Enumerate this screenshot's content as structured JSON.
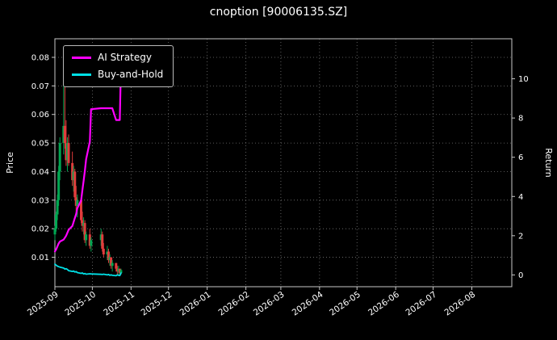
{
  "title": "cnoption [90006135.SZ]",
  "axes": {
    "left_label": "Price",
    "right_label": "Return",
    "left_ticks": [
      0.01,
      0.02,
      0.03,
      0.04,
      0.05,
      0.06,
      0.07,
      0.08
    ],
    "right_ticks": [
      0,
      2,
      4,
      6,
      8,
      10
    ],
    "x_ticks": [
      "2025-09",
      "2025-10",
      "2025-11",
      "2025-12",
      "2026-01",
      "2026-02",
      "2026-03",
      "2026-04",
      "2026-05",
      "2026-06",
      "2026-07",
      "2026-08"
    ]
  },
  "legend": {
    "items": [
      {
        "label": "AI Strategy",
        "color": "#ff00ff"
      },
      {
        "label": "Buy-and-Hold",
        "color": "#00e0e6"
      }
    ]
  },
  "colors": {
    "background": "#000000",
    "text": "#ffffff",
    "grid": "#757575",
    "spine": "#c8c8c8",
    "candle_up": "#00a651",
    "candle_down": "#e03c3c"
  },
  "chart_data": {
    "type": "line",
    "title": "cnoption [90006135.SZ]",
    "xlabel": "",
    "ylabel_left": "Price",
    "ylabel_right": "Return",
    "grid": true,
    "legend_position": "upper left",
    "x_range": [
      "2025-09-01",
      "2026-09-02"
    ],
    "left_ylim": [
      -0.0003,
      0.0865
    ],
    "right_ylim": [
      -0.6,
      12.04
    ],
    "dates": [
      "2025-09-01",
      "2025-09-02",
      "2025-09-03",
      "2025-09-04",
      "2025-09-05",
      "2025-09-08",
      "2025-09-09",
      "2025-09-10",
      "2025-09-11",
      "2025-09-12",
      "2025-09-15",
      "2025-09-16",
      "2025-09-17",
      "2025-09-18",
      "2025-09-19",
      "2025-09-22",
      "2025-09-23",
      "2025-09-24",
      "2025-09-25",
      "2025-09-26",
      "2025-09-29",
      "2025-09-30",
      "2025-10-08",
      "2025-10-09",
      "2025-10-10",
      "2025-10-13",
      "2025-10-14",
      "2025-10-15",
      "2025-10-16",
      "2025-10-17",
      "2025-10-20",
      "2025-10-21",
      "2025-10-22",
      "2025-10-23",
      "2025-10-24"
    ],
    "candlestick": {
      "open": [
        0.018,
        0.02,
        0.025,
        0.03,
        0.04,
        0.05,
        0.056,
        0.05,
        0.044,
        0.05,
        0.043,
        0.037,
        0.04,
        0.031,
        0.028,
        0.03,
        0.023,
        0.021,
        0.022,
        0.016,
        0.018,
        0.014,
        0.016,
        0.018,
        0.013,
        0.011,
        0.012,
        0.009,
        0.01,
        0.007,
        0.008,
        0.006,
        0.005,
        0.006,
        0.0045
      ],
      "high": [
        0.021,
        0.026,
        0.032,
        0.042,
        0.052,
        0.08,
        0.071,
        0.058,
        0.052,
        0.053,
        0.047,
        0.042,
        0.041,
        0.035,
        0.032,
        0.031,
        0.026,
        0.024,
        0.023,
        0.019,
        0.02,
        0.017,
        0.02,
        0.019,
        0.015,
        0.014,
        0.013,
        0.011,
        0.01,
        0.009,
        0.008,
        0.007,
        0.007,
        0.006,
        0.006
      ],
      "low": [
        0.016,
        0.019,
        0.023,
        0.028,
        0.037,
        0.046,
        0.048,
        0.042,
        0.04,
        0.042,
        0.035,
        0.033,
        0.03,
        0.026,
        0.024,
        0.022,
        0.019,
        0.018,
        0.015,
        0.014,
        0.013,
        0.012,
        0.014,
        0.012,
        0.01,
        0.009,
        0.008,
        0.007,
        0.006,
        0.005,
        0.005,
        0.004,
        0.004,
        0.0035,
        0.004
      ],
      "close": [
        0.02,
        0.025,
        0.03,
        0.04,
        0.05,
        0.056,
        0.05,
        0.044,
        0.05,
        0.043,
        0.037,
        0.04,
        0.031,
        0.028,
        0.03,
        0.023,
        0.021,
        0.022,
        0.016,
        0.018,
        0.014,
        0.016,
        0.018,
        0.013,
        0.011,
        0.012,
        0.009,
        0.01,
        0.007,
        0.008,
        0.006,
        0.005,
        0.006,
        0.0045,
        0.0055
      ]
    },
    "series": [
      {
        "name": "AI Strategy",
        "axis": "return",
        "color": "#ff00ff",
        "values": [
          1.2,
          1.3,
          1.45,
          1.6,
          1.7,
          1.8,
          1.9,
          2.0,
          2.15,
          2.3,
          2.5,
          2.7,
          2.9,
          3.1,
          3.4,
          3.8,
          4.3,
          4.8,
          5.3,
          5.9,
          6.8,
          8.45,
          8.5,
          8.5,
          8.5,
          8.5,
          8.5,
          8.5,
          8.5,
          8.5,
          7.9,
          7.9,
          7.9,
          7.9,
          11.0
        ]
      },
      {
        "name": "Buy-and-Hold",
        "axis": "return",
        "color": "#00e0e6",
        "values": [
          0.55,
          0.5,
          0.45,
          0.42,
          0.4,
          0.35,
          0.3,
          0.32,
          0.28,
          0.22,
          0.18,
          0.2,
          0.15,
          0.17,
          0.12,
          0.08,
          0.1,
          0.05,
          0.07,
          0.04,
          0.06,
          0.05,
          0.03,
          0.02,
          0.04,
          0.0,
          0.02,
          -0.02,
          0.0,
          -0.02,
          -0.04,
          0.0,
          -0.02,
          -0.03,
          0.1
        ]
      }
    ]
  }
}
